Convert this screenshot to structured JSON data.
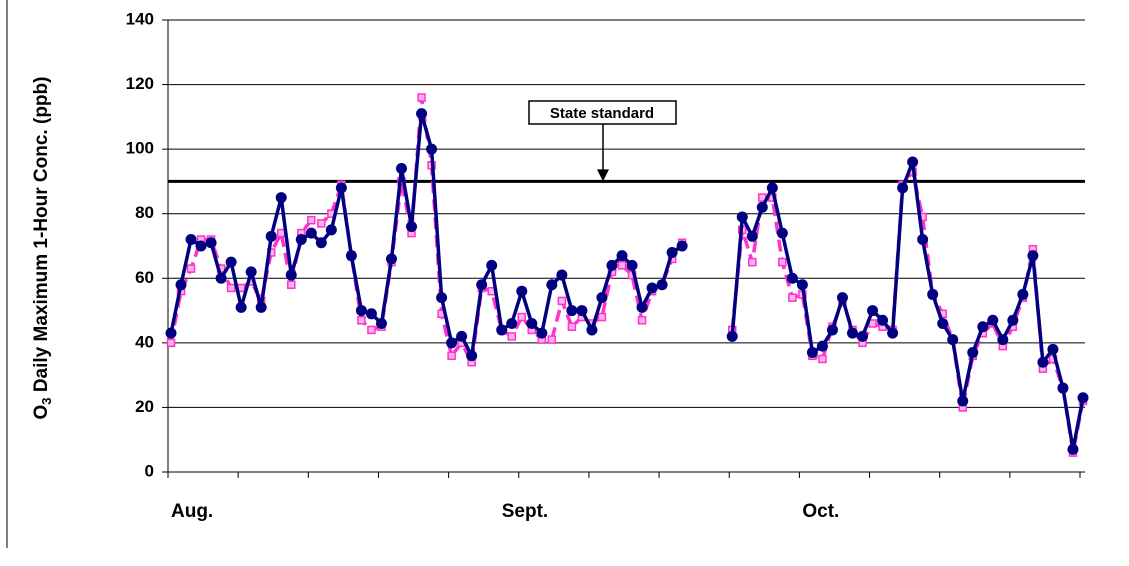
{
  "chart_data": {
    "type": "line",
    "y_label_parts": [
      "O",
      "3",
      " Daily Maximum 1-Hour Conc. (ppb)"
    ],
    "categories": [
      "Aug.",
      null,
      null,
      null,
      null,
      null,
      null,
      null,
      null,
      null,
      null,
      null,
      null,
      null,
      null,
      null,
      null,
      null,
      null,
      null,
      null,
      null,
      null,
      null,
      null,
      null,
      null,
      null,
      null,
      null,
      null,
      null,
      null,
      "Sept.",
      null,
      null,
      null,
      null,
      null,
      null,
      null,
      null,
      null,
      null,
      null,
      null,
      null,
      null,
      null,
      null,
      null,
      null,
      null,
      null,
      null,
      null,
      null,
      null,
      null,
      null,
      null,
      null,
      null,
      "Oct.",
      null,
      null,
      null,
      null,
      null,
      null,
      null,
      null,
      null,
      null,
      null,
      null,
      null,
      null,
      null,
      null,
      null,
      null,
      null,
      null,
      null,
      null,
      null,
      null,
      null,
      null,
      null,
      null
    ],
    "series": [
      {
        "color": "#000080",
        "marker": "circle",
        "dashed": false,
        "values": [
          43,
          58,
          72,
          70,
          71,
          60,
          65,
          51,
          62,
          51,
          73,
          85,
          61,
          72,
          74,
          71,
          75,
          88,
          67,
          50,
          49,
          46,
          66,
          94,
          76,
          111,
          100,
          54,
          40,
          42,
          36,
          58,
          64,
          44,
          46,
          56,
          46,
          43,
          58,
          61,
          50,
          50,
          44,
          54,
          64,
          67,
          64,
          51,
          57,
          58,
          68,
          70,
          null,
          null,
          null,
          null,
          42,
          79,
          73,
          82,
          88,
          74,
          60,
          58,
          37,
          39,
          44,
          54,
          43,
          42,
          50,
          47,
          43,
          88,
          96,
          72,
          55,
          46,
          41,
          22,
          37,
          45,
          47,
          41,
          47,
          55,
          67,
          34,
          38,
          26,
          7,
          23
        ]
      },
      {
        "color": "#ff33cc",
        "marker": "square",
        "dashed": true,
        "values": [
          40,
          56,
          63,
          72,
          72,
          63,
          57,
          57,
          59,
          53,
          68,
          74,
          58,
          74,
          78,
          77,
          80,
          89,
          67,
          47,
          44,
          45,
          65,
          90,
          74,
          116,
          95,
          49,
          36,
          40,
          34,
          57,
          56,
          44,
          42,
          48,
          44,
          41,
          41,
          53,
          45,
          48,
          46,
          48,
          62,
          64,
          61,
          47,
          56,
          58,
          66,
          71,
          null,
          null,
          null,
          null,
          44,
          75,
          65,
          85,
          85,
          65,
          54,
          55,
          36,
          35,
          45,
          53,
          44,
          40,
          46,
          45,
          44,
          89,
          93,
          79,
          55,
          49,
          41,
          20,
          36,
          43,
          46,
          39,
          45,
          54,
          69,
          32,
          35,
          26,
          6,
          22
        ]
      }
    ],
    "ylim": [
      0,
      140
    ],
    "yticks": [
      0,
      20,
      40,
      60,
      80,
      100,
      120,
      140
    ],
    "grid": true,
    "standard": {
      "value": 90,
      "label": "State standard"
    }
  }
}
